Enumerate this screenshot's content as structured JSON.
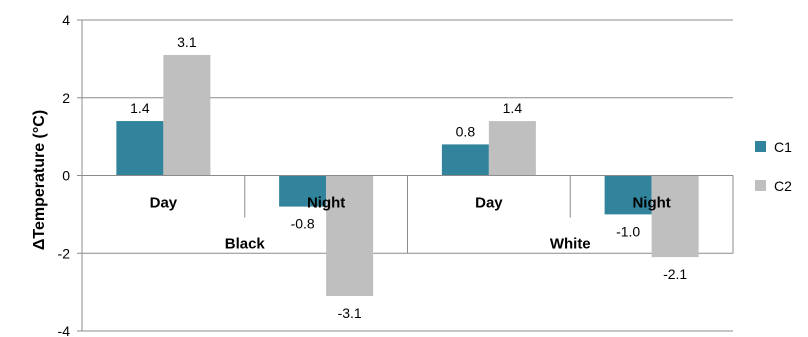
{
  "chart_data": {
    "type": "bar",
    "ylabel": "ΔTemperature (°C)",
    "ylim": [
      -4,
      4
    ],
    "yticks": [
      4,
      2,
      0,
      -2,
      -4
    ],
    "grid": true,
    "legend_position": "right",
    "groups": [
      "Black",
      "White"
    ],
    "categories": [
      "Day",
      "Night",
      "Day",
      "Night"
    ],
    "series": [
      {
        "name": "C1",
        "color": "#31849b",
        "values": [
          1.4,
          -0.8,
          0.8,
          -1.0
        ],
        "labels": [
          "1.4",
          "-0.8",
          "0.8",
          "-1.0"
        ]
      },
      {
        "name": "C2",
        "color": "#bfbfbf",
        "values": [
          3.1,
          -3.1,
          1.4,
          -2.1
        ],
        "labels": [
          "3.1",
          "-3.1",
          "1.4",
          "-2.1"
        ]
      }
    ]
  }
}
